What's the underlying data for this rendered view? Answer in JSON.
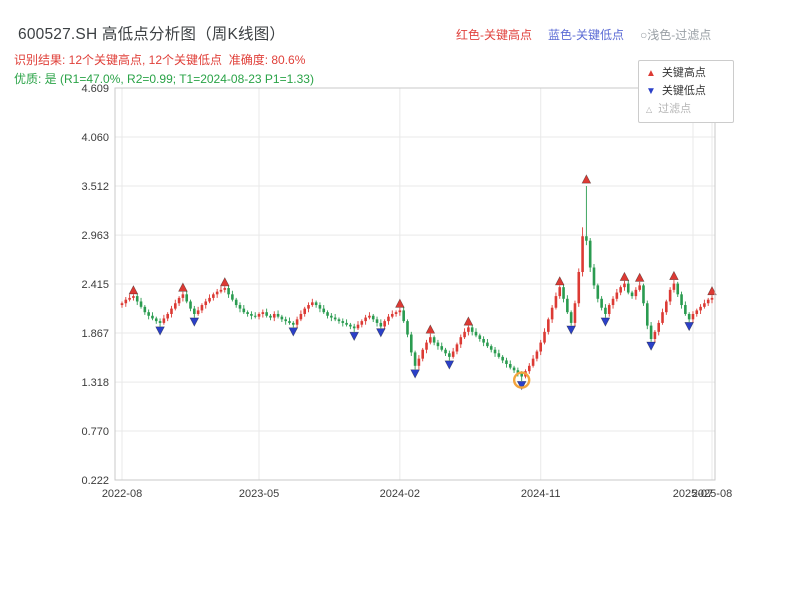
{
  "header": {
    "title": "600527.SH 高低点分析图（周K线图）",
    "legend_high": "红色-关键高点",
    "legend_low": "蓝色-关键低点",
    "legend_filter": "○浅色-过滤点",
    "result_line": "识别结果: 12个关键高点, 12个关键低点  准确度: 80.6%",
    "quality_line": "优质: 是 (R1=47.0%, R2=0.99; T1=2024-08-23 P1=1.33)"
  },
  "plot_legend": {
    "high": "关键高点",
    "low": "关键低点",
    "filter": "过滤点"
  },
  "stats": {
    "key_high_count": 12,
    "key_low_count": 12,
    "accuracy": "80.6%",
    "r1": "47.0%",
    "r2": "0.99",
    "t1": "2024-08-23",
    "p1": "1.33"
  },
  "chart_data": {
    "type": "candlestick",
    "title": "600527.SH 高低点分析图（周K线图）",
    "ylim": [
      0.222,
      4.609
    ],
    "yticks": [
      4.609,
      4.06,
      3.512,
      2.963,
      2.415,
      1.867,
      1.318,
      0.77,
      0.222
    ],
    "xticks": [
      {
        "i": 0,
        "label": "2022-08"
      },
      {
        "i": 36,
        "label": "2023-05"
      },
      {
        "i": 73,
        "label": "2024-02"
      },
      {
        "i": 110,
        "label": "2024-11"
      },
      {
        "i": 150,
        "label": "2025-07"
      },
      {
        "i": 155,
        "label": "2025-08"
      }
    ],
    "colors": {
      "up": "#dc3a34",
      "down": "#2a9b50",
      "key_high": "#dc3a34",
      "key_low": "#2b40c8",
      "filter": "#aaaaaa",
      "highlight": "#f2a43d",
      "grid": "#e9e9e9",
      "border": "#c9c9c9",
      "tick_text": "#3c3c3c"
    },
    "candles": [
      [
        2.18,
        2.22,
        2.15,
        2.2
      ],
      [
        2.2,
        2.27,
        2.16,
        2.24
      ],
      [
        2.24,
        2.3,
        2.22,
        2.26
      ],
      [
        2.26,
        2.3,
        2.23,
        2.28
      ],
      [
        2.28,
        2.31,
        2.18,
        2.22
      ],
      [
        2.22,
        2.26,
        2.14,
        2.16
      ],
      [
        2.16,
        2.18,
        2.07,
        2.1
      ],
      [
        2.1,
        2.13,
        2.02,
        2.06
      ],
      [
        2.06,
        2.1,
        2.01,
        2.03
      ],
      [
        2.03,
        2.05,
        1.97,
        2.0
      ],
      [
        2.0,
        2.03,
        1.94,
        1.98
      ],
      [
        1.98,
        2.07,
        1.96,
        2.03
      ],
      [
        2.03,
        2.1,
        2.0,
        2.08
      ],
      [
        2.08,
        2.17,
        2.04,
        2.14
      ],
      [
        2.14,
        2.24,
        2.12,
        2.2
      ],
      [
        2.2,
        2.28,
        2.17,
        2.26
      ],
      [
        2.26,
        2.33,
        2.22,
        2.3
      ],
      [
        2.3,
        2.34,
        2.2,
        2.22
      ],
      [
        2.22,
        2.24,
        2.11,
        2.14
      ],
      [
        2.14,
        2.17,
        2.04,
        2.08
      ],
      [
        2.08,
        2.16,
        2.06,
        2.12
      ],
      [
        2.12,
        2.2,
        2.09,
        2.18
      ],
      [
        2.18,
        2.25,
        2.14,
        2.22
      ],
      [
        2.22,
        2.3,
        2.2,
        2.26
      ],
      [
        2.26,
        2.32,
        2.23,
        2.3
      ],
      [
        2.3,
        2.36,
        2.26,
        2.33
      ],
      [
        2.33,
        2.39,
        2.31,
        2.35
      ],
      [
        2.35,
        2.39,
        2.32,
        2.37
      ],
      [
        2.37,
        2.4,
        2.26,
        2.3
      ],
      [
        2.3,
        2.34,
        2.22,
        2.24
      ],
      [
        2.24,
        2.26,
        2.15,
        2.18
      ],
      [
        2.18,
        2.21,
        2.1,
        2.14
      ],
      [
        2.14,
        2.18,
        2.08,
        2.1
      ],
      [
        2.1,
        2.12,
        2.05,
        2.08
      ],
      [
        2.08,
        2.11,
        2.02,
        2.06
      ],
      [
        2.06,
        2.1,
        2.03,
        2.05
      ],
      [
        2.05,
        2.1,
        2.02,
        2.08
      ],
      [
        2.08,
        2.13,
        2.04,
        2.1
      ],
      [
        2.1,
        2.14,
        2.04,
        2.06
      ],
      [
        2.06,
        2.08,
        2.01,
        2.04
      ],
      [
        2.04,
        2.11,
        2.0,
        2.08
      ],
      [
        2.08,
        2.12,
        2.03,
        2.05
      ],
      [
        2.05,
        2.07,
        1.99,
        2.02
      ],
      [
        2.02,
        2.05,
        1.96,
        2.0
      ],
      [
        2.0,
        2.04,
        1.96,
        1.98
      ],
      [
        1.98,
        2.0,
        1.93,
        1.96
      ],
      [
        1.96,
        2.05,
        1.92,
        2.02
      ],
      [
        2.02,
        2.12,
        2.0,
        2.08
      ],
      [
        2.08,
        2.16,
        2.05,
        2.14
      ],
      [
        2.14,
        2.21,
        2.1,
        2.18
      ],
      [
        2.18,
        2.25,
        2.16,
        2.21
      ],
      [
        2.21,
        2.23,
        2.15,
        2.18
      ],
      [
        2.18,
        2.21,
        2.1,
        2.14
      ],
      [
        2.14,
        2.18,
        2.08,
        2.1
      ],
      [
        2.1,
        2.12,
        2.03,
        2.06
      ],
      [
        2.06,
        2.09,
        2.0,
        2.04
      ],
      [
        2.04,
        2.08,
        2.0,
        2.02
      ],
      [
        2.02,
        2.04,
        1.97,
        2.0
      ],
      [
        2.0,
        2.03,
        1.94,
        1.98
      ],
      [
        1.98,
        2.02,
        1.94,
        1.96
      ],
      [
        1.96,
        1.98,
        1.91,
        1.94
      ],
      [
        1.94,
        1.97,
        1.88,
        1.92
      ],
      [
        1.92,
        2.0,
        1.9,
        1.96
      ],
      [
        1.96,
        2.02,
        1.93,
        2.0
      ],
      [
        2.0,
        2.07,
        1.96,
        2.04
      ],
      [
        2.04,
        2.1,
        2.02,
        2.06
      ],
      [
        2.06,
        2.08,
        1.99,
        2.02
      ],
      [
        2.02,
        2.05,
        1.94,
        1.98
      ],
      [
        1.98,
        2.02,
        1.92,
        1.94
      ],
      [
        1.94,
        2.02,
        1.91,
        2.0
      ],
      [
        2.0,
        2.08,
        1.96,
        2.05
      ],
      [
        2.05,
        2.12,
        2.03,
        2.08
      ],
      [
        2.08,
        2.12,
        2.05,
        2.1
      ],
      [
        2.1,
        2.15,
        2.06,
        2.12
      ],
      [
        2.12,
        2.16,
        1.98,
        2.0
      ],
      [
        2.0,
        2.02,
        1.82,
        1.85
      ],
      [
        1.85,
        1.88,
        1.61,
        1.65
      ],
      [
        1.65,
        1.67,
        1.46,
        1.5
      ],
      [
        1.5,
        1.62,
        1.46,
        1.58
      ],
      [
        1.58,
        1.7,
        1.55,
        1.68
      ],
      [
        1.68,
        1.79,
        1.64,
        1.76
      ],
      [
        1.76,
        1.86,
        1.74,
        1.82
      ],
      [
        1.82,
        1.84,
        1.73,
        1.76
      ],
      [
        1.76,
        1.79,
        1.68,
        1.72
      ],
      [
        1.72,
        1.76,
        1.66,
        1.68
      ],
      [
        1.68,
        1.7,
        1.61,
        1.64
      ],
      [
        1.64,
        1.67,
        1.56,
        1.6
      ],
      [
        1.6,
        1.7,
        1.58,
        1.66
      ],
      [
        1.66,
        1.76,
        1.63,
        1.74
      ],
      [
        1.74,
        1.85,
        1.7,
        1.82
      ],
      [
        1.82,
        1.92,
        1.8,
        1.88
      ],
      [
        1.88,
        1.95,
        1.84,
        1.93
      ],
      [
        1.93,
        1.96,
        1.84,
        1.88
      ],
      [
        1.88,
        1.92,
        1.82,
        1.84
      ],
      [
        1.84,
        1.86,
        1.77,
        1.8
      ],
      [
        1.8,
        1.83,
        1.72,
        1.76
      ],
      [
        1.76,
        1.8,
        1.7,
        1.72
      ],
      [
        1.72,
        1.74,
        1.65,
        1.68
      ],
      [
        1.68,
        1.71,
        1.6,
        1.64
      ],
      [
        1.64,
        1.68,
        1.58,
        1.6
      ],
      [
        1.6,
        1.62,
        1.53,
        1.56
      ],
      [
        1.56,
        1.59,
        1.48,
        1.52
      ],
      [
        1.52,
        1.56,
        1.46,
        1.48
      ],
      [
        1.48,
        1.5,
        1.42,
        1.45
      ],
      [
        1.45,
        1.48,
        1.38,
        1.42
      ],
      [
        1.42,
        1.44,
        1.33,
        1.38
      ],
      [
        1.38,
        1.46,
        1.36,
        1.44
      ],
      [
        1.44,
        1.53,
        1.41,
        1.5
      ],
      [
        1.5,
        1.62,
        1.48,
        1.58
      ],
      [
        1.58,
        1.68,
        1.55,
        1.66
      ],
      [
        1.66,
        1.79,
        1.62,
        1.76
      ],
      [
        1.76,
        1.92,
        1.74,
        1.88
      ],
      [
        1.88,
        2.04,
        1.85,
        2.02
      ],
      [
        2.02,
        2.18,
        1.98,
        2.15
      ],
      [
        2.15,
        2.32,
        2.13,
        2.28
      ],
      [
        2.28,
        2.4,
        2.25,
        2.38
      ],
      [
        2.38,
        2.41,
        2.21,
        2.25
      ],
      [
        2.25,
        2.29,
        2.08,
        2.1
      ],
      [
        2.1,
        2.12,
        1.95,
        1.98
      ],
      [
        1.98,
        2.23,
        1.94,
        2.2
      ],
      [
        2.2,
        2.59,
        2.16,
        2.55
      ],
      [
        2.55,
        3.05,
        2.5,
        2.95
      ],
      [
        2.95,
        3.512,
        2.85,
        2.9
      ],
      [
        2.9,
        2.93,
        2.55,
        2.6
      ],
      [
        2.6,
        2.64,
        2.36,
        2.4
      ],
      [
        2.4,
        2.42,
        2.21,
        2.25
      ],
      [
        2.25,
        2.28,
        2.12,
        2.15
      ],
      [
        2.15,
        2.19,
        2.04,
        2.08
      ],
      [
        2.08,
        2.2,
        2.05,
        2.18
      ],
      [
        2.18,
        2.28,
        2.14,
        2.25
      ],
      [
        2.25,
        2.36,
        2.22,
        2.32
      ],
      [
        2.32,
        2.4,
        2.29,
        2.38
      ],
      [
        2.38,
        2.45,
        2.34,
        2.42
      ],
      [
        2.42,
        2.46,
        2.3,
        2.32
      ],
      [
        2.32,
        2.34,
        2.25,
        2.28
      ],
      [
        2.28,
        2.38,
        2.24,
        2.35
      ],
      [
        2.35,
        2.44,
        2.33,
        2.4
      ],
      [
        2.4,
        2.42,
        2.17,
        2.2
      ],
      [
        2.2,
        2.23,
        1.91,
        1.95
      ],
      [
        1.95,
        1.99,
        1.77,
        1.8
      ],
      [
        1.8,
        1.9,
        1.76,
        1.88
      ],
      [
        1.88,
        2.01,
        1.84,
        1.98
      ],
      [
        1.98,
        2.14,
        1.96,
        2.1
      ],
      [
        2.1,
        2.24,
        2.07,
        2.22
      ],
      [
        2.22,
        2.38,
        2.18,
        2.35
      ],
      [
        2.35,
        2.46,
        2.32,
        2.42
      ],
      [
        2.42,
        2.44,
        2.27,
        2.3
      ],
      [
        2.3,
        2.33,
        2.14,
        2.18
      ],
      [
        2.18,
        2.22,
        2.06,
        2.08
      ],
      [
        2.08,
        2.1,
        1.99,
        2.02
      ],
      [
        2.02,
        2.11,
        1.98,
        2.08
      ],
      [
        2.08,
        2.14,
        2.05,
        2.12
      ],
      [
        2.12,
        2.19,
        2.08,
        2.16
      ],
      [
        2.16,
        2.24,
        2.14,
        2.2
      ],
      [
        2.2,
        2.26,
        2.17,
        2.24
      ],
      [
        2.24,
        2.29,
        2.2,
        2.26
      ]
    ],
    "key_highs": [
      {
        "i": 3,
        "v": 2.34
      },
      {
        "i": 16,
        "v": 2.37
      },
      {
        "i": 27,
        "v": 2.43
      },
      {
        "i": 73,
        "v": 2.19
      },
      {
        "i": 81,
        "v": 1.9
      },
      {
        "i": 91,
        "v": 1.99
      },
      {
        "i": 115,
        "v": 2.44
      },
      {
        "i": 122,
        "v": 3.58
      },
      {
        "i": 132,
        "v": 2.49
      },
      {
        "i": 136,
        "v": 2.48
      },
      {
        "i": 145,
        "v": 2.5
      },
      {
        "i": 155,
        "v": 2.33
      }
    ],
    "key_lows": [
      {
        "i": 10,
        "v": 1.9
      },
      {
        "i": 19,
        "v": 2.0
      },
      {
        "i": 45,
        "v": 1.89
      },
      {
        "i": 61,
        "v": 1.84
      },
      {
        "i": 68,
        "v": 1.88
      },
      {
        "i": 77,
        "v": 1.42
      },
      {
        "i": 86,
        "v": 1.52
      },
      {
        "i": 105,
        "v": 1.29
      },
      {
        "i": 118,
        "v": 1.91
      },
      {
        "i": 127,
        "v": 2.0
      },
      {
        "i": 139,
        "v": 1.73
      },
      {
        "i": 149,
        "v": 1.95
      }
    ],
    "highlight": {
      "i": 105,
      "v": 1.34
    }
  }
}
